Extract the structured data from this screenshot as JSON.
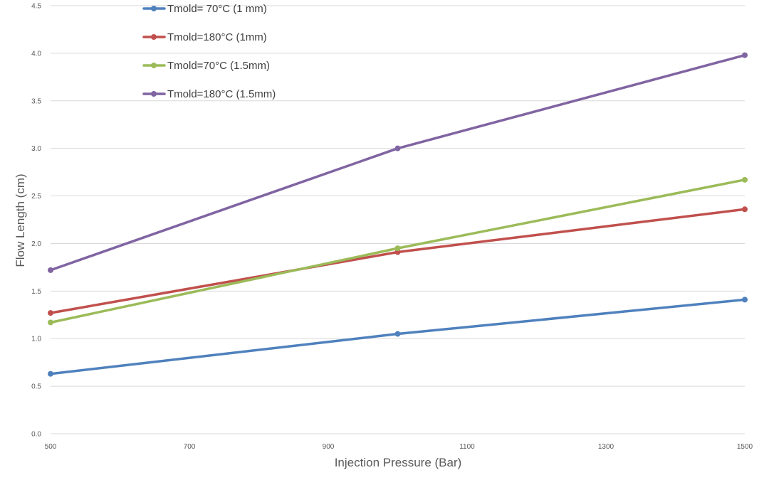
{
  "chart_data": {
    "type": "line",
    "xlabel": "Injection Pressure (Bar)",
    "ylabel": "Flow Length (cm)",
    "xlim": [
      500,
      1500
    ],
    "ylim": [
      0,
      4.5
    ],
    "x_ticks": [
      500,
      700,
      900,
      1100,
      1300,
      1500
    ],
    "y_ticks": [
      "0.0",
      "0.5",
      "1.0",
      "1.5",
      "2.0",
      "2.5",
      "3.0",
      "3.5",
      "4.0",
      "4.5"
    ],
    "grid": true,
    "legend_position": "top-left",
    "x": [
      500,
      1000,
      1500
    ],
    "series": [
      {
        "name": "Tmold= 70°C (1 mm)",
        "color": "#4f81bd",
        "values": [
          0.63,
          1.05,
          1.41
        ]
      },
      {
        "name": "Tmold=180°C (1mm)",
        "color": "#c0504d",
        "values": [
          1.27,
          1.91,
          2.36
        ]
      },
      {
        "name": "Tmold=70°C (1.5mm)",
        "color": "#9bbb59",
        "values": [
          1.17,
          1.95,
          2.67
        ]
      },
      {
        "name": "Tmold=180°C (1.5mm)",
        "color": "#8064a2",
        "values": [
          1.72,
          3.0,
          3.98
        ]
      }
    ]
  }
}
